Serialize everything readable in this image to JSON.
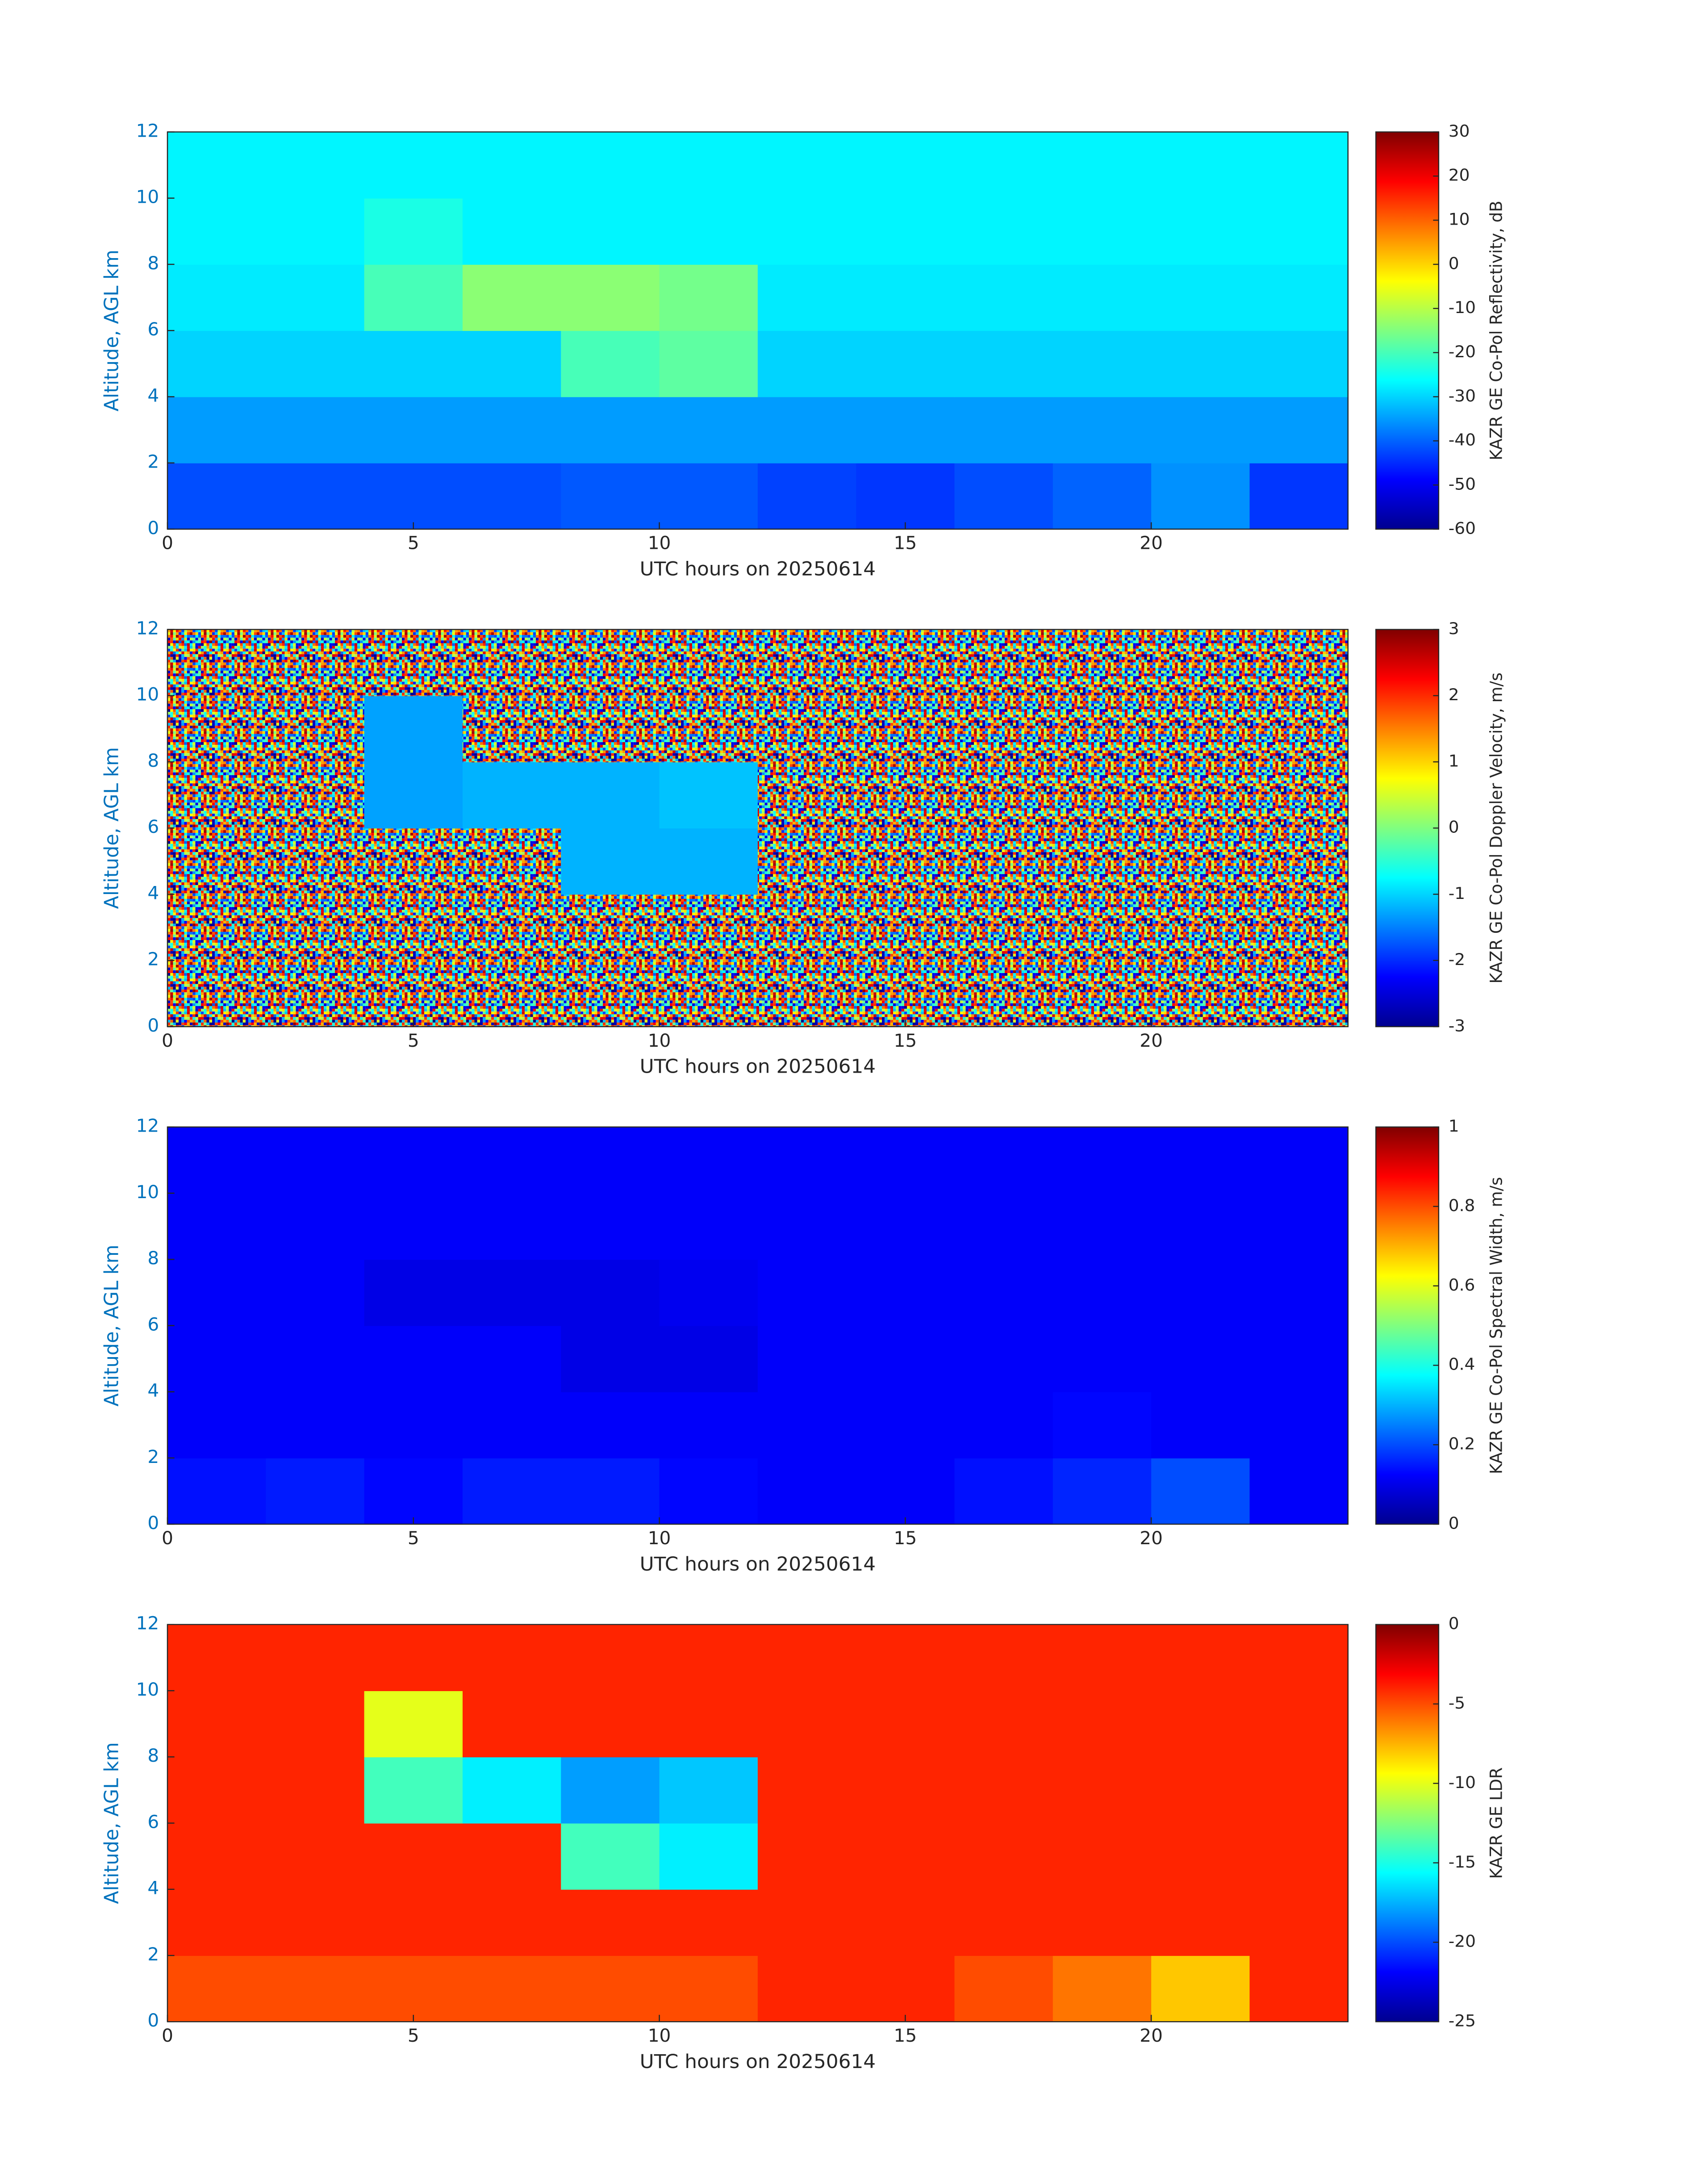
{
  "chart_data": [
    {
      "type": "heatmap",
      "colormap": "jet",
      "xlabel": "UTC hours on 20250614",
      "ylabel": "Altitude, AGL km",
      "xlim": [
        0,
        24
      ],
      "ylim": [
        0,
        12
      ],
      "xticks": [
        0,
        5,
        10,
        15,
        20
      ],
      "yticks": [
        0,
        2,
        4,
        6,
        8,
        10,
        12
      ],
      "x_edges": [
        0,
        2,
        4,
        6,
        8,
        10,
        12,
        14,
        16,
        18,
        20,
        22,
        24
      ],
      "y_edges": [
        0,
        2,
        4,
        6,
        8,
        10,
        12
      ],
      "z": [
        [
          -42,
          -42,
          -42,
          -42,
          -41,
          -41,
          -43,
          -44,
          -42,
          -40,
          -36,
          -44
        ],
        [
          -35,
          -35,
          -35,
          -35,
          -35,
          -35,
          -35,
          -35,
          -35,
          -35,
          -35,
          -35
        ],
        [
          -30,
          -30,
          -30,
          -30,
          -20,
          -18,
          -30,
          -30,
          -30,
          -30,
          -30,
          -30
        ],
        [
          -28,
          -28,
          -20,
          -14,
          -14,
          -16,
          -28,
          -28,
          -28,
          -28,
          -28,
          -28
        ],
        [
          -27,
          -27,
          -24,
          -27,
          -27,
          -27,
          -27,
          -27,
          -27,
          -27,
          -27,
          -27
        ],
        [
          -27,
          -27,
          -27,
          -27,
          -27,
          -27,
          -27,
          -27,
          -27,
          -27,
          -27,
          -27
        ]
      ],
      "colorbar": {
        "label": "KAZR GE Co-Pol Reflectivity, dB",
        "lim": [
          -60,
          30
        ],
        "ticks": [
          -60,
          -50,
          -40,
          -30,
          -20,
          -10,
          0,
          10,
          20,
          30
        ]
      }
    },
    {
      "type": "heatmap",
      "colormap": "jet",
      "xlabel": "UTC hours on 20250614",
      "ylabel": "Altitude, AGL km",
      "xlim": [
        0,
        24
      ],
      "ylim": [
        0,
        12
      ],
      "xticks": [
        0,
        5,
        10,
        15,
        20
      ],
      "yticks": [
        0,
        2,
        4,
        6,
        8,
        10,
        12
      ],
      "x_edges": [
        0,
        2,
        4,
        6,
        8,
        10,
        12,
        14,
        16,
        18,
        20,
        22,
        24
      ],
      "y_edges": [
        0,
        2,
        4,
        6,
        8,
        10,
        12
      ],
      "z": [
        [
          null,
          null,
          null,
          null,
          null,
          null,
          null,
          null,
          null,
          null,
          null,
          null
        ],
        [
          null,
          null,
          null,
          null,
          null,
          null,
          null,
          null,
          null,
          null,
          null,
          null
        ],
        [
          null,
          null,
          null,
          null,
          -1.2,
          -1.2,
          null,
          null,
          null,
          null,
          null,
          null
        ],
        [
          null,
          null,
          -1.3,
          -1.2,
          -1.2,
          -1.1,
          null,
          null,
          null,
          null,
          null,
          null
        ],
        [
          null,
          null,
          -1.3,
          null,
          null,
          null,
          null,
          null,
          null,
          null,
          null,
          null
        ],
        [
          null,
          null,
          null,
          null,
          null,
          null,
          null,
          null,
          null,
          null,
          null,
          null
        ]
      ],
      "colorbar": {
        "label": "KAZR GE Co-Pol Doppler Velocity, m/s",
        "lim": [
          -3,
          3
        ],
        "ticks": [
          -3,
          -2,
          -1,
          0,
          1,
          2,
          3
        ]
      }
    },
    {
      "type": "heatmap",
      "colormap": "jet",
      "xlabel": "UTC hours on 20250614",
      "ylabel": "Altitude, AGL km",
      "xlim": [
        0,
        24
      ],
      "ylim": [
        0,
        12
      ],
      "xticks": [
        0,
        5,
        10,
        15,
        20
      ],
      "yticks": [
        0,
        2,
        4,
        6,
        8,
        10,
        12
      ],
      "x_edges": [
        0,
        2,
        4,
        6,
        8,
        10,
        12,
        14,
        16,
        18,
        20,
        22,
        24
      ],
      "y_edges": [
        0,
        2,
        4,
        6,
        8,
        10,
        12
      ],
      "z": [
        [
          0.14,
          0.15,
          0.13,
          0.15,
          0.15,
          0.13,
          0.12,
          0.12,
          0.14,
          0.16,
          0.2,
          0.12
        ],
        [
          0.12,
          0.12,
          0.12,
          0.12,
          0.12,
          0.12,
          0.12,
          0.12,
          0.12,
          0.13,
          0.12,
          0.12
        ],
        [
          0.12,
          0.12,
          0.12,
          0.12,
          0.1,
          0.1,
          0.12,
          0.12,
          0.12,
          0.12,
          0.12,
          0.12
        ],
        [
          0.12,
          0.12,
          0.1,
          0.1,
          0.1,
          0.11,
          0.12,
          0.12,
          0.12,
          0.12,
          0.12,
          0.12
        ],
        [
          0.12,
          0.12,
          0.12,
          0.12,
          0.12,
          0.12,
          0.12,
          0.12,
          0.12,
          0.12,
          0.12,
          0.12
        ],
        [
          0.12,
          0.12,
          0.12,
          0.12,
          0.12,
          0.12,
          0.12,
          0.12,
          0.12,
          0.12,
          0.12,
          0.12
        ]
      ],
      "colorbar": {
        "label": "KAZR GE Co-Pol Spectral Width, m/s",
        "lim": [
          0,
          1
        ],
        "ticks": [
          0,
          0.2,
          0.4,
          0.6,
          0.8,
          1
        ]
      }
    },
    {
      "type": "heatmap",
      "colormap": "jet",
      "xlabel": "UTC hours on 20250614",
      "ylabel": "Altitude, AGL km",
      "xlim": [
        0,
        24
      ],
      "ylim": [
        0,
        12
      ],
      "xticks": [
        0,
        5,
        10,
        15,
        20
      ],
      "yticks": [
        0,
        2,
        4,
        6,
        8,
        10,
        12
      ],
      "x_edges": [
        0,
        2,
        4,
        6,
        8,
        10,
        12,
        14,
        16,
        18,
        20,
        22,
        24
      ],
      "y_edges": [
        0,
        2,
        4,
        6,
        8,
        10,
        12
      ],
      "z": [
        [
          -5,
          -5,
          -5,
          -5,
          -5,
          -5,
          -4,
          -4,
          -5,
          -6,
          -8,
          -4
        ],
        [
          -4,
          -4,
          -4,
          -4,
          -4,
          -4,
          -4,
          -4,
          -4,
          -4,
          -4,
          -4
        ],
        [
          -4,
          -4,
          -4,
          -4,
          -14,
          -16,
          -4,
          -4,
          -4,
          -4,
          -4,
          -4
        ],
        [
          -4,
          -4,
          -14,
          -16,
          -18,
          -17,
          -4,
          -4,
          -4,
          -4,
          -4,
          -4
        ],
        [
          -4,
          -4,
          -10,
          -4,
          -4,
          -4,
          -4,
          -4,
          -4,
          -4,
          -4,
          -4
        ],
        [
          -4,
          -4,
          -4,
          -4,
          -4,
          -4,
          -4,
          -4,
          -4,
          -4,
          -4,
          -4
        ]
      ],
      "colorbar": {
        "label": "KAZR GE LDR",
        "lim": [
          -25,
          0
        ],
        "ticks": [
          0,
          -5,
          -10,
          -15,
          -20,
          -25
        ]
      }
    }
  ]
}
